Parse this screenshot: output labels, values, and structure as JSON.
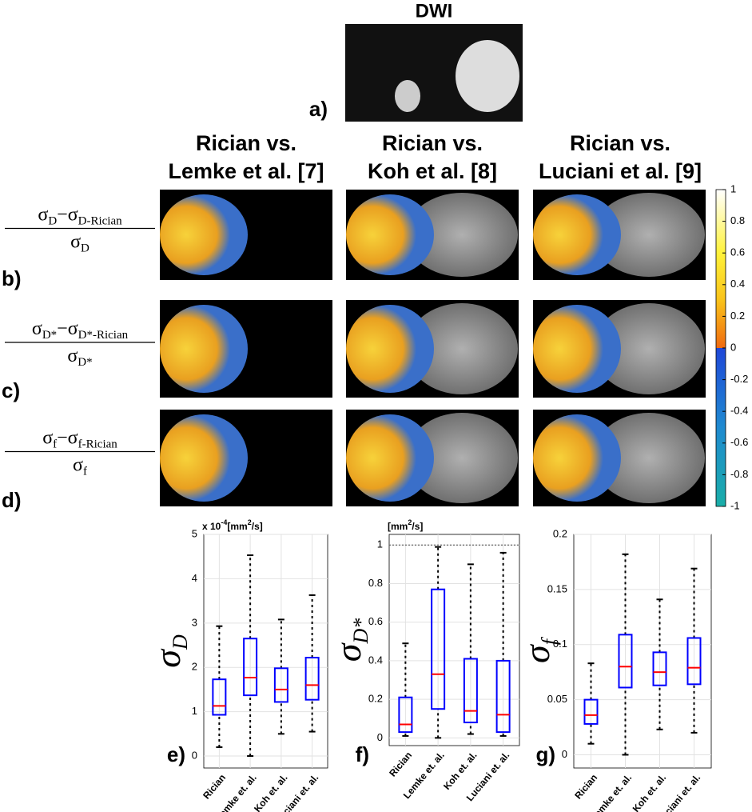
{
  "figure": {
    "dwi_title": "DWI",
    "panel_labels": [
      "a)",
      "b)",
      "c)",
      "d)"
    ],
    "column_titles": [
      [
        "Rician vs.",
        "Lemke et al. [7]"
      ],
      [
        "Rician vs.",
        "Koh et al. [8]"
      ],
      [
        "Rician vs.",
        "Luciani et al. [9]"
      ]
    ],
    "row_labels": [
      {
        "numerator": [
          "σ",
          "D",
          "−σ",
          "D-Rician"
        ],
        "denominator": [
          "σ",
          "D"
        ]
      },
      {
        "numerator": [
          "σ",
          "D*",
          "−σ",
          "D*-Rician"
        ],
        "denominator": [
          "σ",
          "D*"
        ]
      },
      {
        "numerator": [
          "σ",
          "f",
          "−σ",
          "f-Rician"
        ],
        "denominator": [
          "σ",
          "f"
        ]
      }
    ],
    "colorbar": {
      "ylim": [
        -1,
        1
      ],
      "yticks": [
        1,
        0.8,
        0.6,
        0.4,
        0.2,
        0,
        -0.2,
        -0.4,
        -0.6,
        -0.8,
        -1
      ]
    }
  },
  "chart_data": [
    {
      "type": "box",
      "panel": "e)",
      "unit_label": [
        "x 10",
        "-4",
        "[mm",
        "2",
        "/s]"
      ],
      "ylabel": [
        "σ",
        "D"
      ],
      "categories": [
        "Rician",
        "Lemke et. al.",
        "Koh et. al.",
        "Luciani et. al."
      ],
      "ylim": [
        -0.27,
        5
      ],
      "yticks": [
        0,
        1,
        2,
        3,
        4,
        5
      ],
      "grid": true,
      "box_color": "#0000ff",
      "median_color": "#ff0000",
      "boxes": [
        {
          "min": 0.2,
          "q1": 0.93,
          "median": 1.13,
          "q3": 1.73,
          "max": 2.93
        },
        {
          "min": 0,
          "q1": 1.37,
          "median": 1.77,
          "q3": 2.65,
          "max": 4.53
        },
        {
          "min": 0.5,
          "q1": 1.22,
          "median": 1.5,
          "q3": 1.98,
          "max": 3.08
        },
        {
          "min": 0.55,
          "q1": 1.27,
          "median": 1.6,
          "q3": 2.22,
          "max": 3.63
        }
      ]
    },
    {
      "type": "box",
      "panel": "f)",
      "unit_label": [
        "[mm",
        "2",
        "/s]"
      ],
      "ylabel": [
        "σ",
        "D*"
      ],
      "categories": [
        "Rician",
        "Lemke et. al.",
        "Koh et. al.",
        "Luciani et. al."
      ],
      "ylim": [
        -0.04,
        1.055
      ],
      "yticks": [
        0,
        0.2,
        0.4,
        0.6,
        0.8,
        1
      ],
      "grid": true,
      "refline": 1,
      "box_color": "#0000ff",
      "median_color": "#ff0000",
      "boxes": [
        {
          "min": 0.01,
          "q1": 0.03,
          "median": 0.07,
          "q3": 0.21,
          "max": 0.49
        },
        {
          "min": 0,
          "q1": 0.15,
          "median": 0.33,
          "q3": 0.77,
          "max": 0.99
        },
        {
          "min": 0.02,
          "q1": 0.08,
          "median": 0.14,
          "q3": 0.41,
          "max": 0.9
        },
        {
          "min": 0.01,
          "q1": 0.03,
          "median": 0.12,
          "q3": 0.4,
          "max": 0.96
        }
      ]
    },
    {
      "type": "box",
      "panel": "g)",
      "ylabel": [
        "σ",
        "f"
      ],
      "categories": [
        "Rician",
        "Lemke et. al.",
        "Koh et. al.",
        "Luciani et. al."
      ],
      "ylim": [
        -0.012,
        0.2
      ],
      "yticks": [
        0,
        0.05,
        0.1,
        0.15,
        0.2
      ],
      "grid": true,
      "box_color": "#0000ff",
      "median_color": "#ff0000",
      "boxes": [
        {
          "min": 0.01,
          "q1": 0.028,
          "median": 0.036,
          "q3": 0.05,
          "max": 0.083
        },
        {
          "min": 0,
          "q1": 0.061,
          "median": 0.08,
          "q3": 0.109,
          "max": 0.182
        },
        {
          "min": 0.023,
          "q1": 0.063,
          "median": 0.075,
          "q3": 0.093,
          "max": 0.141
        },
        {
          "min": 0.02,
          "q1": 0.064,
          "median": 0.079,
          "q3": 0.106,
          "max": 0.169
        }
      ]
    }
  ]
}
